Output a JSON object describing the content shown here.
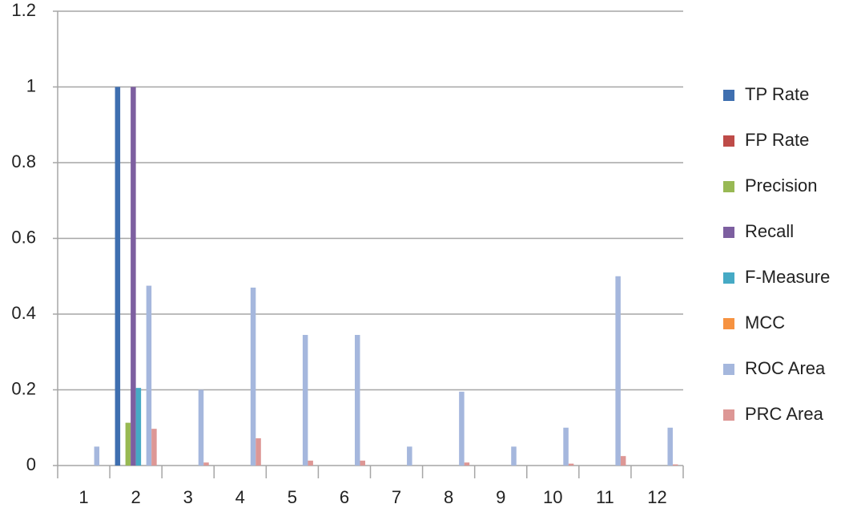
{
  "chart_data": {
    "type": "bar",
    "categories": [
      "1",
      "2",
      "3",
      "4",
      "5",
      "6",
      "7",
      "8",
      "9",
      "10",
      "11",
      "12"
    ],
    "series": [
      {
        "name": "TP Rate",
        "color": "#3f6fb0",
        "values": [
          0,
          1,
          0,
          0,
          0,
          0,
          0,
          0,
          0,
          0,
          0,
          0
        ]
      },
      {
        "name": "FP Rate",
        "color": "#be4b48",
        "values": [
          0,
          0,
          0,
          0,
          0,
          0,
          0,
          0,
          0,
          0,
          0,
          0
        ]
      },
      {
        "name": "Precision",
        "color": "#98b954",
        "values": [
          0,
          0.113,
          0,
          0,
          0,
          0,
          0,
          0,
          0,
          0,
          0,
          0
        ]
      },
      {
        "name": "Recall",
        "color": "#7d5fa0",
        "values": [
          0,
          1,
          0,
          0,
          0,
          0,
          0,
          0,
          0,
          0,
          0,
          0
        ]
      },
      {
        "name": "F-Measure",
        "color": "#46aac5",
        "values": [
          0,
          0.205,
          0,
          0,
          0,
          0,
          0,
          0,
          0,
          0,
          0,
          0
        ]
      },
      {
        "name": "MCC",
        "color": "#f69240",
        "values": [
          0,
          0,
          0,
          0,
          0,
          0,
          0,
          0,
          0,
          0,
          0,
          0
        ]
      },
      {
        "name": "ROC Area",
        "color": "#a5b7dd",
        "values": [
          0.05,
          0.475,
          0.2,
          0.47,
          0.345,
          0.345,
          0.05,
          0.195,
          0.05,
          0.1,
          0.5,
          0.1
        ]
      },
      {
        "name": "PRC Area",
        "color": "#dd9795",
        "values": [
          0,
          0.097,
          0.008,
          0.072,
          0.013,
          0.013,
          0,
          0.008,
          0,
          0.005,
          0.025,
          0.003
        ]
      }
    ],
    "ylim": [
      0,
      1.2
    ],
    "yticks": [
      0,
      0.2,
      0.4,
      0.6,
      0.8,
      1,
      1.2
    ],
    "grid": true,
    "legend": "right"
  }
}
